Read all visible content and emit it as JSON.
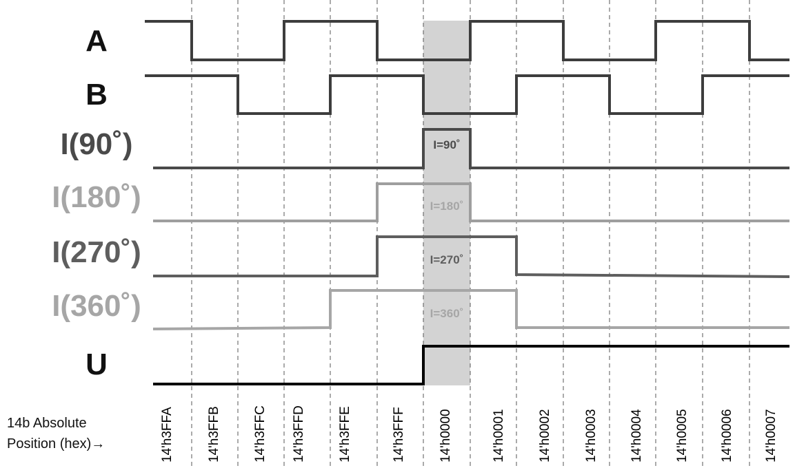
{
  "signals": [
    {
      "label": "A",
      "color": "#3d3d3d"
    },
    {
      "label": "B",
      "color": "#3d3d3d"
    },
    {
      "label": "I(90˚)",
      "color": "#4a4a4a",
      "pulse_label": "I=90˚"
    },
    {
      "label": "I(180˚)",
      "color": "#9e9e9e",
      "pulse_label": "I=180˚"
    },
    {
      "label": "I(270˚)",
      "color": "#5e5e5e",
      "pulse_label": "I=270˚"
    },
    {
      "label": "I(360˚)",
      "color": "#a6a6a6",
      "pulse_label": "I=360˚"
    },
    {
      "label": "U",
      "color": "#000000"
    }
  ],
  "positions": [
    "14'h3FFA",
    "14'h3FFB",
    "14'h3FFC",
    "14'h3FFD",
    "14'h3FFE",
    "14'h3FFF",
    "14'h0000",
    "14'h0001",
    "14'h0002",
    "14'h0003",
    "14'h0004",
    "14'h0005",
    "14'h0006",
    "14'h0007"
  ],
  "axis_caption_line1": "14b Absolute",
  "axis_caption_line2": "Position (hex)→",
  "highlight_color": "#d3d3d3"
}
